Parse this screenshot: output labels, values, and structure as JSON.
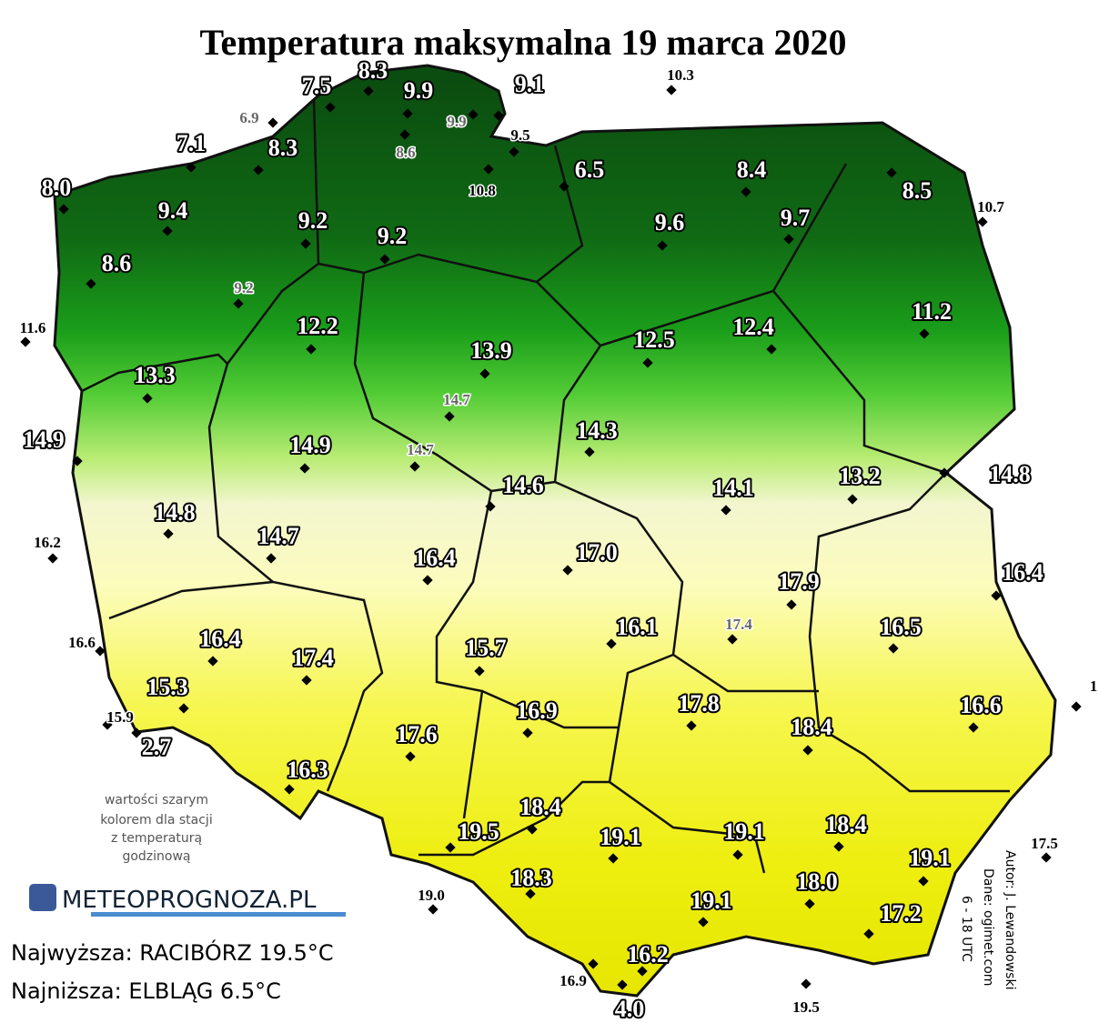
{
  "header": {
    "title": "Temperatura maksymalna 19 marca 2020"
  },
  "stations": [
    "7.5",
    "8.3",
    "9.1",
    "10.3",
    "6.9",
    "9.9",
    "9.9",
    "9.5",
    "7.1",
    "8.3",
    "8.6",
    "10.8",
    "6.5",
    "8.4",
    "8.5",
    "10.7",
    "8.0",
    "9.4",
    "9.2",
    "9.2",
    "9.6",
    "9.7",
    "8.6",
    "9.2",
    "11.6",
    "12.2",
    "11.2",
    "12.5",
    "12.4",
    "13.9",
    "13.3",
    "14.7",
    "14.9",
    "14.3",
    "14.9",
    "14.7",
    "14.8",
    "14.6",
    "14.1",
    "13.2",
    "14.8",
    "16.2",
    "14.7",
    "16.4",
    "17.0",
    "16.4",
    "17.9",
    "17.4",
    "16.1",
    "16.5",
    "16.6",
    "16.4",
    "15.7",
    "17.4",
    "15.3",
    "1",
    "16.6",
    "15.9",
    "16.9",
    "17.8",
    "18.4",
    "2.7",
    "17.6",
    "16.3",
    "18.4",
    "19.5",
    "19.1",
    "19.1",
    "18.4",
    "17.5",
    "19.1",
    "18.3",
    "19.0",
    "18.0",
    "19.1",
    "17.2",
    "16.2",
    "16.9",
    "4.0",
    "19.5"
  ],
  "note": [
    "wartości szarym",
    "kolorem dla stacji",
    "z temperaturą",
    "godzinową"
  ],
  "logo": "METEOPROGNOZA.PL",
  "extremes": {
    "max": "Najwyższa: RACIBÓRZ 19.5°C",
    "min": "Najniższa: ELBLĄG 6.5°C"
  },
  "credits": [
    "Autor: J. Lewandowski",
    "Dane: ogimet.com",
    "6 - 18 UTC"
  ]
}
